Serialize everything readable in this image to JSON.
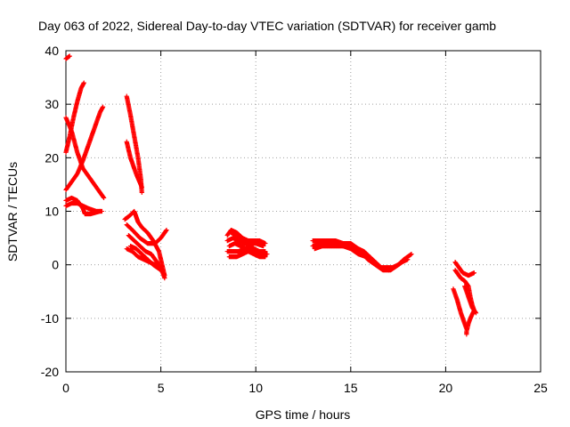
{
  "chart_data": {
    "type": "scatter",
    "title": "Day 063 of 2022, Sidereal Day-to-day VTEC variation (SDTVAR) for receiver gamb",
    "xlabel": "GPS time / hours",
    "ylabel": "SDTVAR / TECUs",
    "xlim": [
      0,
      25
    ],
    "ylim": [
      -20,
      40
    ],
    "xticks": [
      0,
      5,
      10,
      15,
      20,
      25
    ],
    "yticks": [
      -20,
      -10,
      0,
      10,
      20,
      30,
      40
    ],
    "grid": true,
    "marker": "plus",
    "color": "#ff0000",
    "series": [
      {
        "tracks": [
          [
            [
              0.0,
              38.5
            ],
            [
              0.2,
              39.0
            ]
          ],
          [
            [
              0.0,
              21.0
            ],
            [
              0.2,
              24.0
            ],
            [
              0.4,
              27.5
            ],
            [
              0.6,
              30.5
            ],
            [
              0.8,
              33.0
            ],
            [
              0.95,
              34.0
            ]
          ],
          [
            [
              0.0,
              27.5
            ],
            [
              0.3,
              25.0
            ],
            [
              0.6,
              21.0
            ],
            [
              0.9,
              18.0
            ],
            [
              1.3,
              16.0
            ],
            [
              1.7,
              14.0
            ],
            [
              2.0,
              12.5
            ]
          ],
          [
            [
              0.0,
              14.0
            ],
            [
              0.3,
              15.5
            ],
            [
              0.6,
              17.0
            ],
            [
              0.9,
              19.5
            ],
            [
              1.2,
              22.5
            ],
            [
              1.5,
              25.5
            ],
            [
              1.8,
              28.5
            ],
            [
              1.95,
              29.5
            ]
          ],
          [
            [
              0.0,
              11.0
            ],
            [
              0.3,
              11.5
            ],
            [
              0.6,
              11.5
            ],
            [
              0.9,
              11.0
            ],
            [
              1.2,
              10.5
            ],
            [
              1.6,
              10.0
            ],
            [
              1.9,
              10.0
            ]
          ],
          [
            [
              0.0,
              12.0
            ],
            [
              0.3,
              12.5
            ],
            [
              0.6,
              12.0
            ],
            [
              0.9,
              10.5
            ],
            [
              1.0,
              9.5
            ],
            [
              1.3,
              9.5
            ],
            [
              1.8,
              10.0
            ]
          ],
          [
            [
              3.2,
              23.0
            ],
            [
              3.4,
              20.0
            ],
            [
              3.7,
              17.0
            ],
            [
              4.0,
              14.5
            ]
          ],
          [
            [
              3.2,
              31.5
            ],
            [
              3.4,
              28.0
            ],
            [
              3.6,
              24.0
            ],
            [
              3.8,
              20.0
            ],
            [
              3.95,
              16.0
            ],
            [
              4.0,
              13.5
            ]
          ],
          [
            [
              3.1,
              8.5
            ],
            [
              3.3,
              9.0
            ],
            [
              3.6,
              10.0
            ],
            [
              3.8,
              8.0
            ],
            [
              4.0,
              7.0
            ],
            [
              4.3,
              6.0
            ],
            [
              4.6,
              4.5
            ],
            [
              4.9,
              2.5
            ],
            [
              5.1,
              -0.5
            ],
            [
              5.2,
              -2.0
            ]
          ],
          [
            [
              3.2,
              7.5
            ],
            [
              3.5,
              6.5
            ],
            [
              3.9,
              5.0
            ],
            [
              4.3,
              4.0
            ],
            [
              4.7,
              4.0
            ],
            [
              5.0,
              5.0
            ],
            [
              5.3,
              6.5
            ]
          ],
          [
            [
              3.3,
              5.5
            ],
            [
              3.6,
              4.5
            ],
            [
              3.9,
              3.5
            ],
            [
              4.2,
              2.5
            ],
            [
              4.5,
              2.0
            ],
            [
              4.8,
              0.5
            ],
            [
              5.1,
              -1.5
            ],
            [
              5.2,
              -2.5
            ]
          ],
          [
            [
              3.2,
              3.0
            ],
            [
              3.5,
              2.5
            ],
            [
              3.8,
              1.5
            ],
            [
              4.1,
              1.0
            ],
            [
              4.4,
              0.5
            ],
            [
              4.7,
              0.0
            ],
            [
              5.0,
              -0.5
            ]
          ],
          [
            [
              3.4,
              3.5
            ],
            [
              3.7,
              3.0
            ],
            [
              4.0,
              2.0
            ],
            [
              4.3,
              1.0
            ],
            [
              4.6,
              0.0
            ],
            [
              5.0,
              -1.0
            ]
          ],
          [
            [
              8.5,
              5.5
            ],
            [
              8.7,
              6.5
            ],
            [
              9.0,
              6.0
            ],
            [
              9.3,
              5.0
            ],
            [
              9.6,
              4.5
            ],
            [
              9.9,
              4.5
            ],
            [
              10.2,
              4.5
            ],
            [
              10.5,
              4.0
            ]
          ],
          [
            [
              8.5,
              4.5
            ],
            [
              8.8,
              5.0
            ],
            [
              9.1,
              4.5
            ],
            [
              9.4,
              4.0
            ],
            [
              9.7,
              4.0
            ],
            [
              10.0,
              4.0
            ],
            [
              10.4,
              3.5
            ]
          ],
          [
            [
              8.6,
              3.5
            ],
            [
              8.9,
              4.0
            ],
            [
              9.2,
              3.5
            ],
            [
              9.5,
              3.0
            ],
            [
              9.8,
              3.0
            ],
            [
              10.1,
              2.5
            ],
            [
              10.5,
              2.5
            ]
          ],
          [
            [
              8.5,
              2.5
            ],
            [
              8.8,
              2.5
            ],
            [
              9.1,
              2.5
            ],
            [
              9.4,
              3.0
            ],
            [
              9.7,
              3.5
            ],
            [
              10.0,
              2.5
            ],
            [
              10.3,
              2.0
            ],
            [
              10.6,
              2.0
            ]
          ],
          [
            [
              8.6,
              1.5
            ],
            [
              9.0,
              1.5
            ],
            [
              9.3,
              2.0
            ],
            [
              9.6,
              2.5
            ],
            [
              9.9,
              2.0
            ],
            [
              10.2,
              1.5
            ],
            [
              10.5,
              1.5
            ]
          ],
          [
            [
              8.7,
              6.0
            ],
            [
              9.0,
              5.5
            ],
            [
              9.3,
              5.0
            ],
            [
              9.6,
              4.0
            ],
            [
              9.9,
              3.0
            ],
            [
              10.2,
              2.5
            ]
          ],
          [
            [
              13.0,
              4.5
            ],
            [
              13.4,
              4.5
            ],
            [
              13.8,
              4.5
            ],
            [
              14.2,
              4.5
            ],
            [
              14.6,
              4.0
            ],
            [
              15.0,
              4.0
            ],
            [
              15.4,
              3.0
            ],
            [
              15.7,
              2.5
            ],
            [
              16.0,
              1.5
            ],
            [
              16.3,
              0.5
            ],
            [
              16.6,
              -0.5
            ],
            [
              16.9,
              -0.5
            ],
            [
              17.2,
              -0.5
            ],
            [
              17.5,
              0.0
            ],
            [
              17.8,
              1.0
            ],
            [
              18.0,
              1.5
            ],
            [
              18.2,
              2.0
            ]
          ],
          [
            [
              13.0,
              3.5
            ],
            [
              13.4,
              4.0
            ],
            [
              13.8,
              4.0
            ],
            [
              14.2,
              4.0
            ],
            [
              14.6,
              3.5
            ],
            [
              15.0,
              3.0
            ],
            [
              15.4,
              2.0
            ],
            [
              15.8,
              1.5
            ],
            [
              16.2,
              0.5
            ],
            [
              16.6,
              -0.5
            ],
            [
              17.0,
              -1.0
            ],
            [
              17.3,
              -0.5
            ],
            [
              17.7,
              0.5
            ],
            [
              18.0,
              1.0
            ]
          ],
          [
            [
              13.1,
              3.0
            ],
            [
              13.5,
              3.5
            ],
            [
              13.9,
              3.5
            ],
            [
              14.3,
              3.5
            ],
            [
              14.7,
              3.5
            ],
            [
              15.1,
              3.0
            ],
            [
              15.5,
              2.5
            ],
            [
              15.9,
              1.0
            ],
            [
              16.3,
              0.0
            ],
            [
              16.7,
              -1.0
            ],
            [
              17.1,
              -1.0
            ],
            [
              17.5,
              0.0
            ],
            [
              17.9,
              1.0
            ]
          ],
          [
            [
              20.5,
              0.5
            ],
            [
              20.7,
              -0.5
            ],
            [
              20.9,
              -1.5
            ],
            [
              21.2,
              -2.0
            ],
            [
              21.5,
              -1.5
            ]
          ],
          [
            [
              20.5,
              -1.0
            ],
            [
              20.8,
              -2.5
            ],
            [
              21.0,
              -3.0
            ],
            [
              21.2,
              -4.0
            ],
            [
              21.3,
              -6.0
            ],
            [
              21.4,
              -7.5
            ],
            [
              21.5,
              -8.5
            ],
            [
              21.3,
              -10.0
            ],
            [
              21.2,
              -11.0
            ],
            [
              21.1,
              -12.5
            ],
            [
              21.1,
              -13.0
            ]
          ],
          [
            [
              20.4,
              -4.5
            ],
            [
              20.6,
              -6.5
            ],
            [
              20.8,
              -9.0
            ],
            [
              21.0,
              -11.0
            ],
            [
              21.1,
              -12.0
            ]
          ],
          [
            [
              21.0,
              -4.0
            ],
            [
              21.2,
              -6.0
            ],
            [
              21.4,
              -8.0
            ],
            [
              21.6,
              -9.0
            ]
          ]
        ]
      }
    ]
  }
}
